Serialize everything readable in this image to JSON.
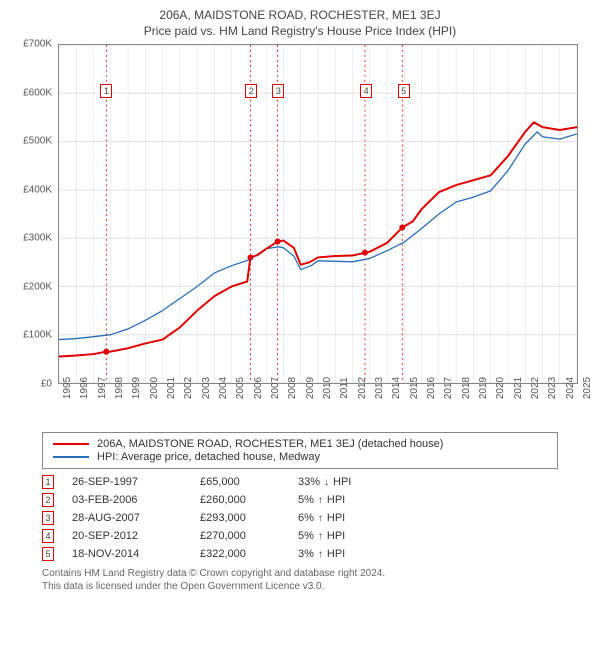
{
  "title": "206A, MAIDSTONE ROAD, ROCHESTER, ME1 3EJ",
  "subtitle": "Price paid vs. HM Land Registry's House Price Index (HPI)",
  "chart": {
    "type": "line",
    "ylim": [
      0,
      700000
    ],
    "ytick_step": 100000,
    "ytick_labels": [
      "£0",
      "£100K",
      "£200K",
      "£300K",
      "£400K",
      "£500K",
      "£600K",
      "£700K"
    ],
    "xlim": [
      1995,
      2025
    ],
    "xtick_step": 1,
    "xtick_labels": [
      "1995",
      "1996",
      "1997",
      "1998",
      "1999",
      "2000",
      "2001",
      "2002",
      "2003",
      "2004",
      "2005",
      "2006",
      "2007",
      "2008",
      "2009",
      "2010",
      "2011",
      "2012",
      "2013",
      "2014",
      "2015",
      "2016",
      "2017",
      "2018",
      "2019",
      "2020",
      "2021",
      "2022",
      "2023",
      "2024",
      "2025"
    ],
    "grid_color_h": "#e0e0e0",
    "grid_color_v": "#dddddd",
    "plot_border": "#888888",
    "background_color": "#ffffff",
    "series": {
      "red": {
        "label": "206A, MAIDSTONE ROAD, ROCHESTER, ME1 3EJ (detached house)",
        "color": "#e00000",
        "width": 2,
        "points": [
          [
            1995.0,
            55000
          ],
          [
            1996.0,
            57000
          ],
          [
            1997.0,
            60000
          ],
          [
            1997.74,
            65000
          ],
          [
            1998.0,
            65000
          ],
          [
            1999.0,
            72000
          ],
          [
            2000.0,
            82000
          ],
          [
            2001.0,
            90000
          ],
          [
            2002.0,
            115000
          ],
          [
            2003.0,
            150000
          ],
          [
            2004.0,
            180000
          ],
          [
            2005.0,
            200000
          ],
          [
            2005.9,
            210000
          ],
          [
            2006.09,
            260000
          ],
          [
            2006.5,
            265000
          ],
          [
            2007.0,
            278000
          ],
          [
            2007.66,
            293000
          ],
          [
            2008.0,
            295000
          ],
          [
            2008.6,
            280000
          ],
          [
            2009.0,
            245000
          ],
          [
            2009.5,
            250000
          ],
          [
            2010.0,
            260000
          ],
          [
            2011.0,
            263000
          ],
          [
            2012.0,
            264000
          ],
          [
            2012.72,
            270000
          ],
          [
            2013.0,
            272000
          ],
          [
            2014.0,
            290000
          ],
          [
            2014.88,
            322000
          ],
          [
            2015.5,
            335000
          ],
          [
            2016.0,
            360000
          ],
          [
            2017.0,
            395000
          ],
          [
            2018.0,
            410000
          ],
          [
            2019.0,
            420000
          ],
          [
            2020.0,
            430000
          ],
          [
            2021.0,
            470000
          ],
          [
            2022.0,
            520000
          ],
          [
            2022.5,
            540000
          ],
          [
            2023.0,
            530000
          ],
          [
            2024.0,
            524000
          ],
          [
            2025.0,
            530000
          ]
        ]
      },
      "blue": {
        "label": "HPI: Average price, detached house, Medway",
        "color": "#2a6db8",
        "width": 1.3,
        "points": [
          [
            1995.0,
            90000
          ],
          [
            1996.0,
            92000
          ],
          [
            1997.0,
            96000
          ],
          [
            1998.0,
            100000
          ],
          [
            1999.0,
            112000
          ],
          [
            2000.0,
            130000
          ],
          [
            2001.0,
            150000
          ],
          [
            2002.0,
            175000
          ],
          [
            2003.0,
            200000
          ],
          [
            2004.0,
            228000
          ],
          [
            2005.0,
            243000
          ],
          [
            2006.0,
            255000
          ],
          [
            2007.0,
            278000
          ],
          [
            2007.7,
            282000
          ],
          [
            2008.0,
            280000
          ],
          [
            2008.6,
            263000
          ],
          [
            2009.0,
            235000
          ],
          [
            2009.6,
            243000
          ],
          [
            2010.0,
            253000
          ],
          [
            2011.0,
            252000
          ],
          [
            2012.0,
            251000
          ],
          [
            2013.0,
            258000
          ],
          [
            2014.0,
            274000
          ],
          [
            2015.0,
            292000
          ],
          [
            2016.0,
            320000
          ],
          [
            2017.0,
            350000
          ],
          [
            2018.0,
            375000
          ],
          [
            2019.0,
            385000
          ],
          [
            2020.0,
            398000
          ],
          [
            2021.0,
            440000
          ],
          [
            2022.0,
            495000
          ],
          [
            2022.7,
            520000
          ],
          [
            2023.0,
            510000
          ],
          [
            2024.0,
            505000
          ],
          [
            2025.0,
            516000
          ]
        ]
      }
    },
    "events": [
      {
        "idx": "1",
        "year": 1997.74,
        "price": 65000
      },
      {
        "idx": "2",
        "year": 2006.09,
        "price": 260000
      },
      {
        "idx": "3",
        "year": 2007.66,
        "price": 293000
      },
      {
        "idx": "4",
        "year": 2012.72,
        "price": 270000
      },
      {
        "idx": "5",
        "year": 2014.88,
        "price": 322000
      }
    ],
    "event_box_top_y": 620000,
    "event_line_color": "#e00000"
  },
  "legend": {
    "rows": [
      {
        "color": "#e00000",
        "width": 2,
        "label": "206A, MAIDSTONE ROAD, ROCHESTER, ME1 3EJ (detached house)"
      },
      {
        "color": "#2a6db8",
        "width": 1.3,
        "label": "HPI: Average price, detached house, Medway"
      }
    ]
  },
  "sales": [
    {
      "idx": "1",
      "date": "26-SEP-1997",
      "price": "£65,000",
      "delta": "33%",
      "dir": "down",
      "suffix": "HPI"
    },
    {
      "idx": "2",
      "date": "03-FEB-2006",
      "price": "£260,000",
      "delta": "5%",
      "dir": "up",
      "suffix": "HPI"
    },
    {
      "idx": "3",
      "date": "28-AUG-2007",
      "price": "£293,000",
      "delta": "6%",
      "dir": "up",
      "suffix": "HPI"
    },
    {
      "idx": "4",
      "date": "20-SEP-2012",
      "price": "£270,000",
      "delta": "5%",
      "dir": "up",
      "suffix": "HPI"
    },
    {
      "idx": "5",
      "date": "18-NOV-2014",
      "price": "£322,000",
      "delta": "3%",
      "dir": "up",
      "suffix": "HPI"
    }
  ],
  "footer": {
    "line1": "Contains HM Land Registry data © Crown copyright and database right 2024.",
    "line2": "This data is licensed under the Open Government Licence v3.0."
  }
}
